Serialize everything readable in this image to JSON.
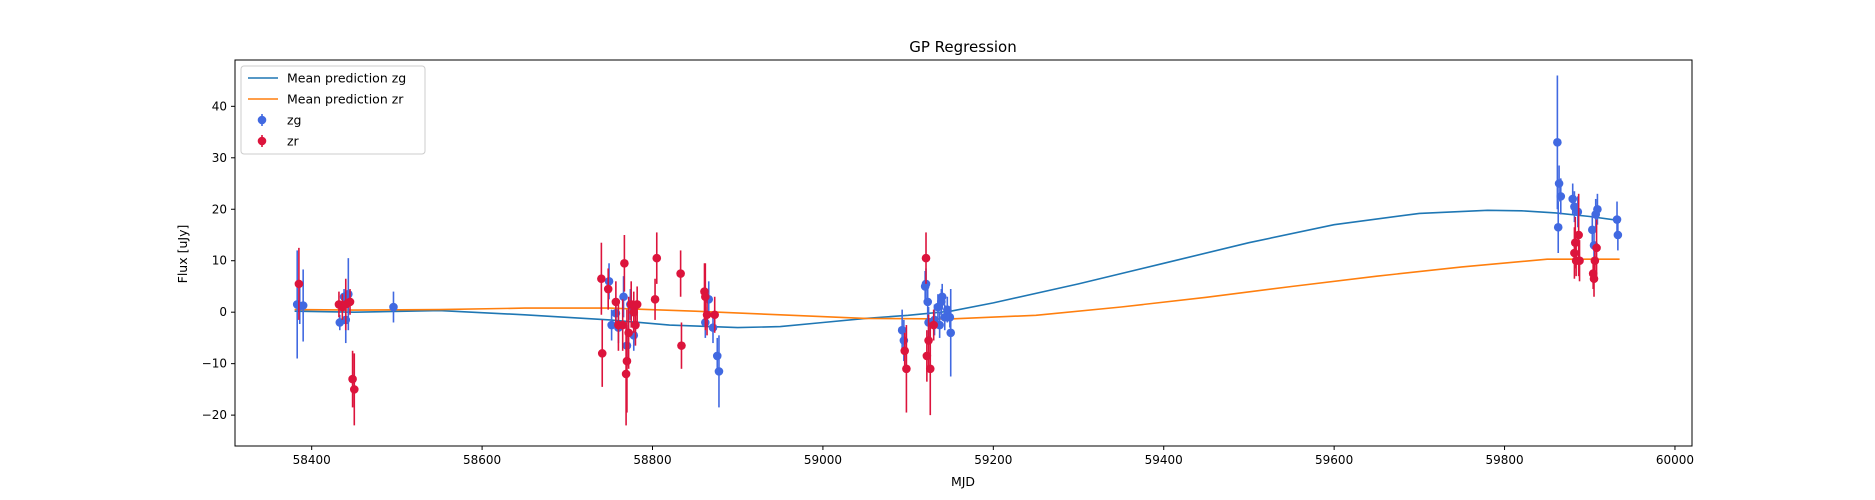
{
  "chart_data": {
    "type": "scatter",
    "title": "GP Regression",
    "xlabel": "MJD",
    "ylabel": "Flux [uJy]",
    "xlim": [
      58310,
      60020
    ],
    "ylim": [
      -26,
      49
    ],
    "xticks": [
      58400,
      58600,
      58800,
      59000,
      59200,
      59400,
      59600,
      59800,
      60000
    ],
    "yticks": [
      -20,
      -10,
      0,
      10,
      20,
      30,
      40
    ],
    "grid": false,
    "legend_position": "top-left",
    "legend": [
      {
        "label": "Mean prediction zg",
        "kind": "line",
        "color": "#1f77b4"
      },
      {
        "label": "Mean prediction zr",
        "kind": "line",
        "color": "#ff7f0e"
      },
      {
        "label": "zg",
        "kind": "errorbar",
        "color": "#4169e1"
      },
      {
        "label": "zr",
        "kind": "errorbar",
        "color": "#dc143c"
      }
    ],
    "lines": [
      {
        "name": "Mean prediction zg",
        "color": "#1f77b4",
        "x": [
          58380,
          58450,
          58550,
          58650,
          58750,
          58820,
          58900,
          58950,
          59000,
          59050,
          59100,
          59150,
          59200,
          59300,
          59400,
          59500,
          59600,
          59700,
          59780,
          59820,
          59860,
          59900,
          59935
        ],
        "y": [
          0.2,
          0.0,
          0.3,
          -0.5,
          -1.5,
          -2.5,
          -3.0,
          -2.8,
          -2.0,
          -1.2,
          -0.6,
          0.2,
          1.8,
          5.5,
          9.5,
          13.5,
          17.0,
          19.2,
          19.8,
          19.7,
          19.3,
          18.6,
          17.8
        ]
      },
      {
        "name": "Mean prediction zr",
        "color": "#ff7f0e",
        "x": [
          58380,
          58450,
          58550,
          58650,
          58750,
          58850,
          58950,
          59050,
          59150,
          59250,
          59350,
          59450,
          59550,
          59650,
          59750,
          59850,
          59935
        ],
        "y": [
          0.5,
          0.4,
          0.5,
          0.8,
          0.8,
          0.2,
          -0.5,
          -1.2,
          -1.3,
          -0.6,
          1.0,
          2.9,
          5.0,
          7.0,
          8.8,
          10.3,
          10.3
        ]
      }
    ],
    "series": [
      {
        "name": "zg",
        "color": "#4169e1",
        "points": [
          {
            "x": 58383,
            "y": 1.5,
            "err": 10.5
          },
          {
            "x": 58386,
            "y": 1.2,
            "err": 3.5
          },
          {
            "x": 58390,
            "y": 1.3,
            "err": 7.0
          },
          {
            "x": 58433,
            "y": -2.0,
            "err": 1.5
          },
          {
            "x": 58438,
            "y": 3.0,
            "err": 1.5
          },
          {
            "x": 58440,
            "y": -1.5,
            "err": 4.5
          },
          {
            "x": 58443,
            "y": 3.5,
            "err": 7.0
          },
          {
            "x": 58496,
            "y": 1.0,
            "err": 3.0
          },
          {
            "x": 58749,
            "y": 6.0,
            "err": 3.5
          },
          {
            "x": 58752,
            "y": -2.5,
            "err": 3.0
          },
          {
            "x": 58757,
            "y": -0.2,
            "err": 2.5
          },
          {
            "x": 58760,
            "y": -3.0,
            "err": 3.0
          },
          {
            "x": 58766,
            "y": 3.0,
            "err": 4.0
          },
          {
            "x": 58770,
            "y": -6.5,
            "err": 4.0
          },
          {
            "x": 58774,
            "y": 1.5,
            "err": 3.0
          },
          {
            "x": 58778,
            "y": -4.5,
            "err": 3.0
          },
          {
            "x": 58862,
            "y": -2.0,
            "err": 3.0
          },
          {
            "x": 58866,
            "y": 2.5,
            "err": 3.5
          },
          {
            "x": 58871,
            "y": -3.0,
            "err": 3.0
          },
          {
            "x": 58876,
            "y": -8.5,
            "err": 3.5
          },
          {
            "x": 58878,
            "y": -11.5,
            "err": 7.0
          },
          {
            "x": 59093,
            "y": -3.5,
            "err": 4.0
          },
          {
            "x": 59095,
            "y": -5.5,
            "err": 4.0
          },
          {
            "x": 59120,
            "y": 5.0,
            "err": 3.0
          },
          {
            "x": 59121,
            "y": 5.5,
            "err": 3.0
          },
          {
            "x": 59123,
            "y": 2.0,
            "err": 3.5
          },
          {
            "x": 59124,
            "y": -2.0,
            "err": 3.0
          },
          {
            "x": 59131,
            "y": -1.5,
            "err": 3.0
          },
          {
            "x": 59135,
            "y": 1.0,
            "err": 2.5
          },
          {
            "x": 59137,
            "y": -2.5,
            "err": 2.5
          },
          {
            "x": 59139,
            "y": 2.0,
            "err": 2.5
          },
          {
            "x": 59140,
            "y": 3.0,
            "err": 2.5
          },
          {
            "x": 59143,
            "y": -1.0,
            "err": 2.5
          },
          {
            "x": 59146,
            "y": 0.5,
            "err": 2.5
          },
          {
            "x": 59149,
            "y": -1.0,
            "err": 2.0
          },
          {
            "x": 59150,
            "y": -4.0,
            "err": 8.5
          },
          {
            "x": 59862,
            "y": 33.0,
            "err": 13.0
          },
          {
            "x": 59863,
            "y": 16.5,
            "err": 5.0
          },
          {
            "x": 59864,
            "y": 25.0,
            "err": 3.5
          },
          {
            "x": 59866,
            "y": 22.5,
            "err": 3.5
          },
          {
            "x": 59880,
            "y": 22.0,
            "err": 3.0
          },
          {
            "x": 59882,
            "y": 20.5,
            "err": 3.0
          },
          {
            "x": 59886,
            "y": 19.5,
            "err": 3.0
          },
          {
            "x": 59903,
            "y": 16.0,
            "err": 3.0
          },
          {
            "x": 59905,
            "y": 13.0,
            "err": 3.0
          },
          {
            "x": 59907,
            "y": 19.0,
            "err": 3.0
          },
          {
            "x": 59909,
            "y": 20.0,
            "err": 3.0
          },
          {
            "x": 59932,
            "y": 18.0,
            "err": 3.5
          },
          {
            "x": 59933,
            "y": 15.0,
            "err": 3.0
          }
        ]
      },
      {
        "name": "zr",
        "color": "#dc143c",
        "points": [
          {
            "x": 58385,
            "y": 5.5,
            "err": 7.0
          },
          {
            "x": 58432,
            "y": 1.5,
            "err": 2.5
          },
          {
            "x": 58436,
            "y": 1.0,
            "err": 2.5
          },
          {
            "x": 58440,
            "y": 1.5,
            "err": 5.0
          },
          {
            "x": 58445,
            "y": 2.0,
            "err": 2.5
          },
          {
            "x": 58448,
            "y": -13.0,
            "err": 5.5
          },
          {
            "x": 58450,
            "y": -15.0,
            "err": 7.0
          },
          {
            "x": 58740,
            "y": 6.5,
            "err": 7.0
          },
          {
            "x": 58741,
            "y": -8.0,
            "err": 6.5
          },
          {
            "x": 58748,
            "y": 4.5,
            "err": 4.0
          },
          {
            "x": 58757,
            "y": 2.0,
            "err": 4.0
          },
          {
            "x": 58760,
            "y": -2.5,
            "err": 5.0
          },
          {
            "x": 58765,
            "y": -2.5,
            "err": 5.0
          },
          {
            "x": 58767,
            "y": 9.5,
            "err": 5.5
          },
          {
            "x": 58769,
            "y": -12.0,
            "err": 10.0
          },
          {
            "x": 58770,
            "y": -9.5,
            "err": 10.0
          },
          {
            "x": 58772,
            "y": -4.0,
            "err": 7.0
          },
          {
            "x": 58775,
            "y": 1.5,
            "err": 4.5
          },
          {
            "x": 58778,
            "y": 0.0,
            "err": 4.0
          },
          {
            "x": 58780,
            "y": -2.5,
            "err": 4.0
          },
          {
            "x": 58782,
            "y": 1.5,
            "err": 3.5
          },
          {
            "x": 58803,
            "y": 2.5,
            "err": 4.0
          },
          {
            "x": 58805,
            "y": 10.5,
            "err": 5.0
          },
          {
            "x": 58833,
            "y": 7.5,
            "err": 4.5
          },
          {
            "x": 58834,
            "y": -6.5,
            "err": 4.5
          },
          {
            "x": 58861,
            "y": 4.0,
            "err": 5.5
          },
          {
            "x": 58862,
            "y": 3.0,
            "err": 6.5
          },
          {
            "x": 58864,
            "y": -0.5,
            "err": 4.0
          },
          {
            "x": 58873,
            "y": -0.5,
            "err": 3.5
          },
          {
            "x": 59096,
            "y": -7.5,
            "err": 3.5
          },
          {
            "x": 59098,
            "y": -11.0,
            "err": 8.5
          },
          {
            "x": 59121,
            "y": 10.5,
            "err": 5.0
          },
          {
            "x": 59122,
            "y": -8.5,
            "err": 5.0
          },
          {
            "x": 59124,
            "y": -5.5,
            "err": 5.0
          },
          {
            "x": 59126,
            "y": -11.0,
            "err": 9.0
          },
          {
            "x": 59130,
            "y": -2.5,
            "err": 3.0
          },
          {
            "x": 59882,
            "y": 11.5,
            "err": 5.0
          },
          {
            "x": 59883,
            "y": 13.5,
            "err": 5.0
          },
          {
            "x": 59884,
            "y": 10.0,
            "err": 3.0
          },
          {
            "x": 59887,
            "y": 15.0,
            "err": 8.0
          },
          {
            "x": 59888,
            "y": 10.0,
            "err": 4.0
          },
          {
            "x": 59904,
            "y": 7.5,
            "err": 3.0
          },
          {
            "x": 59905,
            "y": 6.5,
            "err": 3.5
          },
          {
            "x": 59906,
            "y": 10.0,
            "err": 3.0
          },
          {
            "x": 59908,
            "y": 12.5,
            "err": 5.5
          }
        ]
      }
    ]
  }
}
